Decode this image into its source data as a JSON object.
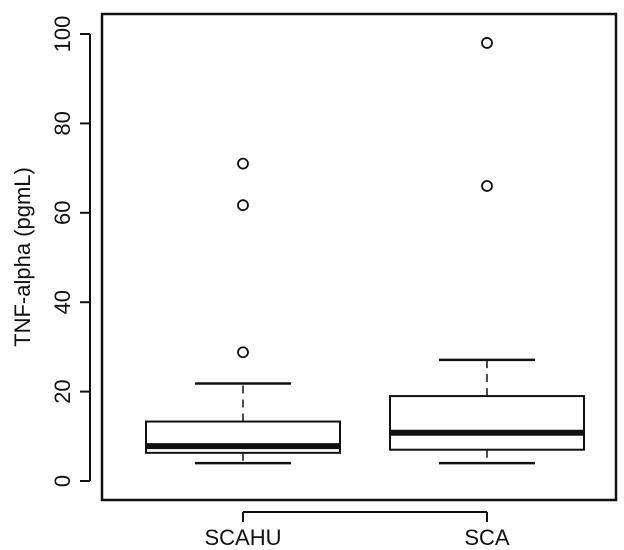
{
  "chart_data": {
    "type": "boxplot",
    "title": "",
    "xlabel": "",
    "ylabel": "TNF-alpha (pgmL)",
    "ylim": [
      0,
      100
    ],
    "yticks": [
      0,
      20,
      40,
      60,
      80,
      100
    ],
    "categories": [
      "SCAHU",
      "SCA"
    ],
    "boxes": [
      {
        "name": "SCAHU",
        "whisker_low": 4,
        "q1": 6.3,
        "median": 7.8,
        "q3": 13.3,
        "whisker_high": 21.8,
        "outliers": [
          28.8,
          61.7,
          71
        ]
      },
      {
        "name": "SCA",
        "whisker_low": 4,
        "q1": 7,
        "median": 10.8,
        "q3": 19,
        "whisker_high": 27.1,
        "outliers": [
          66,
          98
        ]
      }
    ],
    "grid": false,
    "legend": "none"
  }
}
